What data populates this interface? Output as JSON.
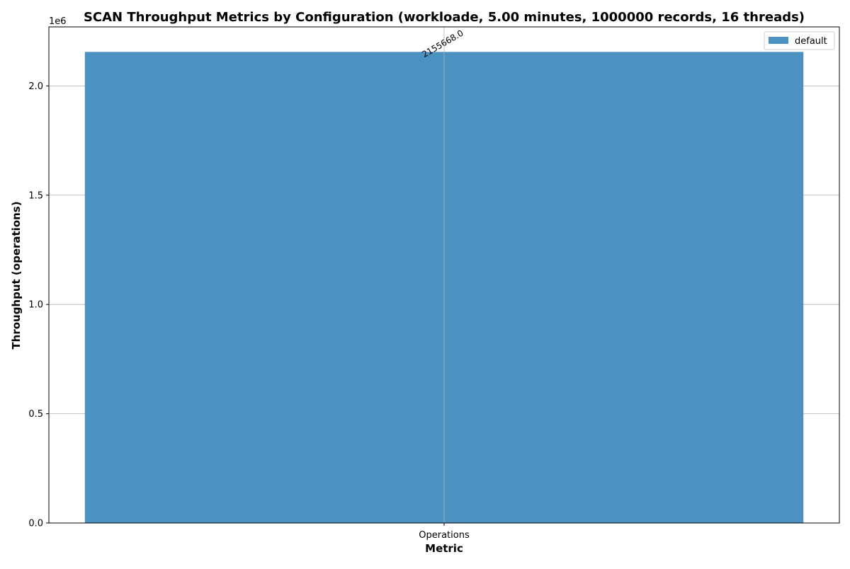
{
  "chart_data": {
    "type": "bar",
    "title": "SCAN Throughput Metrics by Configuration (workloade, 5.00 minutes, 1000000 records, 16 threads)",
    "xlabel": "Metric",
    "ylabel": "Throughput (operations)",
    "categories": [
      "Operations"
    ],
    "series": [
      {
        "name": "default",
        "values": [
          2155668.0
        ],
        "value_labels": [
          "2155668.0"
        ],
        "color": "#4b92c3"
      }
    ],
    "ylim": [
      0,
      2270000
    ],
    "yticks": [
      0,
      500000,
      1000000,
      1500000,
      2000000
    ],
    "ytick_labels": [
      "0.0",
      "0.5",
      "1.0",
      "1.5",
      "2.0"
    ],
    "y_offset_label": "1e6",
    "grid": true,
    "legend_position": "top-right",
    "colors": {
      "bar": "#4b92c3",
      "grid": "#b0b0b0",
      "axis": "#000000"
    }
  }
}
